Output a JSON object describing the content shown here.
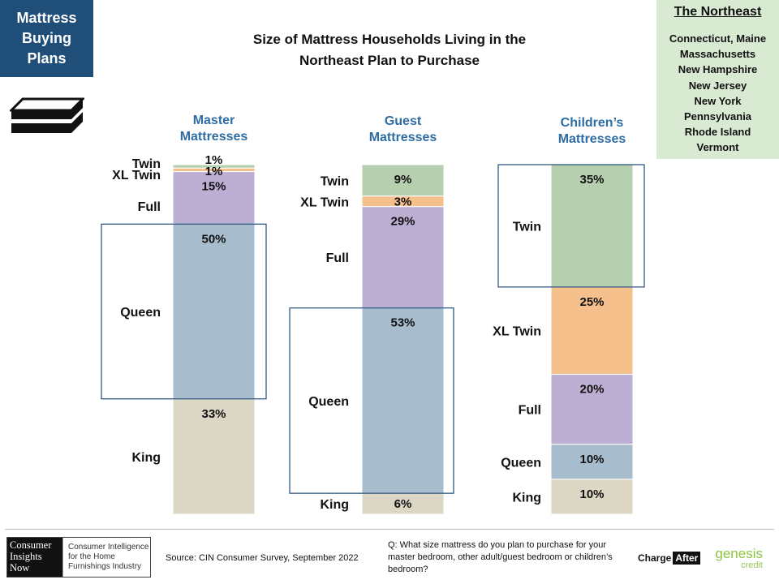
{
  "badge": {
    "lines": [
      "Mattress",
      "Buying",
      "Plans"
    ]
  },
  "region": {
    "title": "The Northeast",
    "states": [
      "Connecticut, Maine",
      "Massachusetts",
      "New Hampshire",
      "New Jersey",
      "New York",
      "Pennsylvania",
      "Rhode Island",
      "Vermont"
    ]
  },
  "title_lines": [
    "Size of Mattress Households  Living in the",
    "Northeast  Plan to Purchase"
  ],
  "icons": {
    "mattress": "mattress-stack-icon"
  },
  "chart_data": {
    "type": "bar",
    "stacked": true,
    "title": "Size of Mattress Households  Living in the Northeast  Plan to Purchase",
    "categories": [
      "Twin",
      "XL Twin",
      "Full",
      "Queen",
      "King"
    ],
    "colors": {
      "Twin": "#b6cfae",
      "XL Twin": "#f6c08d",
      "Full": "#bdaed4",
      "Queen": "#a7bccd",
      "King": "#dcd6c5"
    },
    "highlight_color": "#1f4e79",
    "series": [
      {
        "name_lines": [
          "Master",
          "Mattresses"
        ],
        "values": [
          1,
          1,
          15,
          50,
          33
        ],
        "labels": [
          "1%",
          "1%",
          "15%",
          "50%",
          "33%"
        ],
        "highlight": "Queen"
      },
      {
        "name_lines": [
          "Guest",
          "Mattresses"
        ],
        "values": [
          9,
          3,
          29,
          53,
          6
        ],
        "labels": [
          "9%",
          "3%",
          "29%",
          "53%",
          "6%"
        ],
        "highlight": "Queen"
      },
      {
        "name_lines": [
          "Children’s",
          "Mattresses"
        ],
        "values": [
          35,
          25,
          20,
          10,
          10
        ],
        "labels": [
          "35%",
          "25%",
          "20%",
          "10%",
          "10%"
        ],
        "highlight": "Twin"
      }
    ]
  },
  "footer": {
    "logo_left": [
      "Consumer",
      "Insights",
      "Now"
    ],
    "logo_right": [
      "Consumer Intelligence",
      "for the Home",
      "Furnishings Industry"
    ],
    "source": "Source: CIN Consumer Survey, September  2022",
    "question": "Q: What size mattress do you plan to purchase for your master bedroom, other adult/guest bedroom or children’s bedroom?",
    "chargeafter_1": "Charge",
    "chargeafter_2": "After",
    "genesis_1": "genesis",
    "genesis_2": "credit"
  }
}
